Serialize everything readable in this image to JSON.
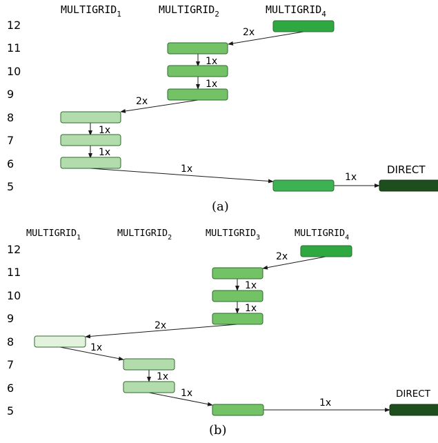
{
  "colors": {
    "arrow": "#1a1a1a",
    "box_stroke": "#2d6a2d",
    "direct": "#1e4d1e",
    "level_shades": {
      "light1": "#e2f2dd",
      "light2": "#b2dcab",
      "mid": "#74c266",
      "mid2": "#56b84e",
      "dark": "#2fa842"
    }
  },
  "panel_a": {
    "caption": "(a)",
    "columns": [
      "MULTIGRID",
      "MULTIGRID",
      "MULTIGRID"
    ],
    "column_subscripts": [
      "1",
      "2",
      "4"
    ],
    "level_labels": [
      "12",
      "11",
      "10",
      "9",
      "8",
      "7",
      "6",
      "5"
    ],
    "direct_label": "DIRECT",
    "arrow_labels": [
      "2x",
      "1x",
      "1x",
      "2x",
      "1x",
      "1x",
      "1x",
      "1x"
    ]
  },
  "panel_b": {
    "caption": "(b)",
    "columns": [
      "MULTIGRID",
      "MULTIGRID",
      "MULTIGRID",
      "MULTIGRID"
    ],
    "column_subscripts": [
      "1",
      "2",
      "3",
      "4"
    ],
    "level_labels": [
      "12",
      "11",
      "10",
      "9",
      "8",
      "7",
      "6",
      "5"
    ],
    "direct_label": "DIRECT",
    "arrow_labels": [
      "2x",
      "1x",
      "1x",
      "2x",
      "1x",
      "1x",
      "1x",
      "1x"
    ]
  }
}
